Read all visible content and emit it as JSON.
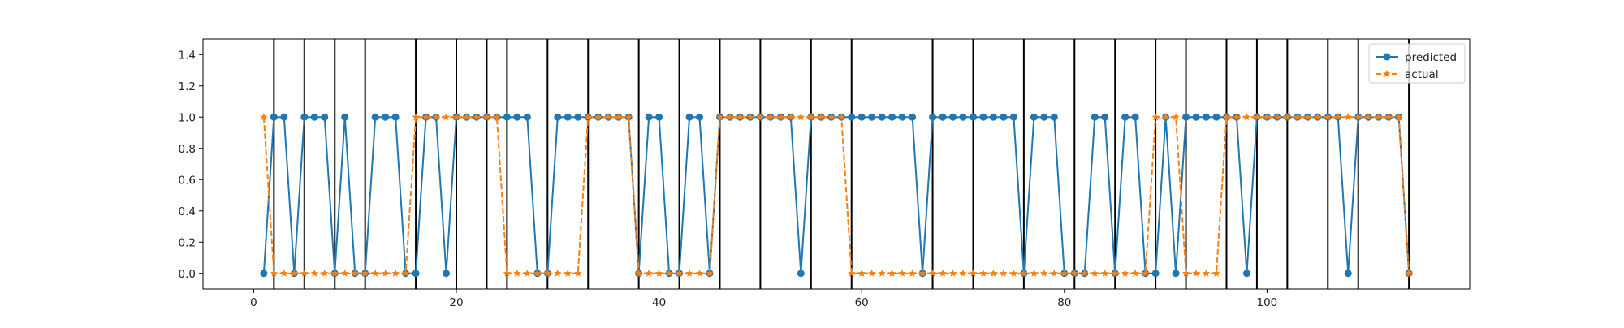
{
  "chart_data": {
    "type": "line",
    "title": "",
    "xlabel": "",
    "ylabel": "",
    "xlim": [
      -5,
      120
    ],
    "ylim": [
      -0.1,
      1.5
    ],
    "xticks": [
      0,
      20,
      40,
      60,
      80,
      100
    ],
    "yticks": [
      0.0,
      0.2,
      0.4,
      0.6,
      0.8,
      1.0,
      1.2,
      1.4
    ],
    "xtick_labels": [
      "0",
      "20",
      "40",
      "60",
      "80",
      "100"
    ],
    "ytick_labels": [
      "0.0",
      "0.2",
      "0.4",
      "0.6",
      "0.8",
      "1.0",
      "1.2",
      "1.4"
    ],
    "grid": false,
    "legend_position": "top-right",
    "vertical_lines": [
      2,
      5,
      8,
      11,
      16,
      20,
      23,
      25,
      29,
      33,
      38,
      42,
      46,
      50,
      55,
      59,
      67,
      71,
      76,
      81,
      85,
      89,
      92,
      96,
      99,
      102,
      106,
      109,
      114
    ],
    "x": [
      1,
      2,
      3,
      4,
      5,
      6,
      7,
      8,
      9,
      10,
      11,
      12,
      13,
      14,
      15,
      16,
      17,
      18,
      19,
      20,
      21,
      22,
      23,
      24,
      25,
      26,
      27,
      28,
      29,
      30,
      31,
      32,
      33,
      34,
      35,
      36,
      37,
      38,
      39,
      40,
      41,
      42,
      43,
      44,
      45,
      46,
      47,
      48,
      49,
      50,
      51,
      52,
      53,
      54,
      55,
      56,
      57,
      58,
      59,
      60,
      61,
      62,
      63,
      64,
      65,
      66,
      67,
      68,
      69,
      70,
      71,
      72,
      73,
      74,
      75,
      76,
      77,
      78,
      79,
      80,
      81,
      82,
      83,
      84,
      85,
      86,
      87,
      88,
      89,
      90,
      91,
      92,
      93,
      94,
      95,
      96,
      97,
      98,
      99,
      100,
      101,
      102,
      103,
      104,
      105,
      106,
      107,
      108,
      109,
      110,
      111,
      112,
      113,
      114
    ],
    "series": [
      {
        "name": "predicted",
        "color": "#1f77b4",
        "linestyle": "solid",
        "marker": "circle",
        "values": [
          0,
          1,
          1,
          0,
          1,
          1,
          1,
          0,
          1,
          0,
          0,
          1,
          1,
          1,
          0,
          0,
          1,
          1,
          0,
          1,
          1,
          1,
          1,
          1,
          1,
          1,
          1,
          0,
          0,
          1,
          1,
          1,
          1,
          1,
          1,
          1,
          1,
          0,
          1,
          1,
          0,
          0,
          1,
          1,
          0,
          1,
          1,
          1,
          1,
          1,
          1,
          1,
          1,
          0,
          1,
          1,
          1,
          1,
          1,
          1,
          1,
          1,
          1,
          1,
          1,
          0,
          1,
          1,
          1,
          1,
          1,
          1,
          1,
          1,
          1,
          0,
          1,
          1,
          1,
          0,
          0,
          0,
          1,
          1,
          0,
          1,
          1,
          0,
          0,
          1,
          0,
          1,
          1,
          1,
          1,
          1,
          1,
          0,
          1,
          1,
          1,
          1,
          1,
          1,
          1,
          1,
          1,
          0,
          1,
          1,
          1,
          1,
          1,
          0
        ]
      },
      {
        "name": "actual",
        "color": "#ff7f0e",
        "linestyle": "dashed",
        "marker": "star",
        "values": [
          1,
          0,
          0,
          0,
          0,
          0,
          0,
          0,
          0,
          0,
          0,
          0,
          0,
          0,
          0,
          1,
          1,
          1,
          1,
          1,
          1,
          1,
          1,
          1,
          0,
          0,
          0,
          0,
          0,
          0,
          0,
          0,
          1,
          1,
          1,
          1,
          1,
          0,
          0,
          0,
          0,
          0,
          0,
          0,
          0,
          1,
          1,
          1,
          1,
          1,
          1,
          1,
          1,
          1,
          1,
          1,
          1,
          1,
          0,
          0,
          0,
          0,
          0,
          0,
          0,
          0,
          0,
          0,
          0,
          0,
          0,
          0,
          0,
          0,
          0,
          0,
          0,
          0,
          0,
          0,
          0,
          0,
          0,
          0,
          0,
          0,
          0,
          0,
          1,
          1,
          1,
          0,
          0,
          0,
          0,
          1,
          1,
          1,
          1,
          1,
          1,
          1,
          1,
          1,
          1,
          1,
          1,
          1,
          1,
          1,
          1,
          1,
          1,
          0
        ]
      }
    ]
  }
}
